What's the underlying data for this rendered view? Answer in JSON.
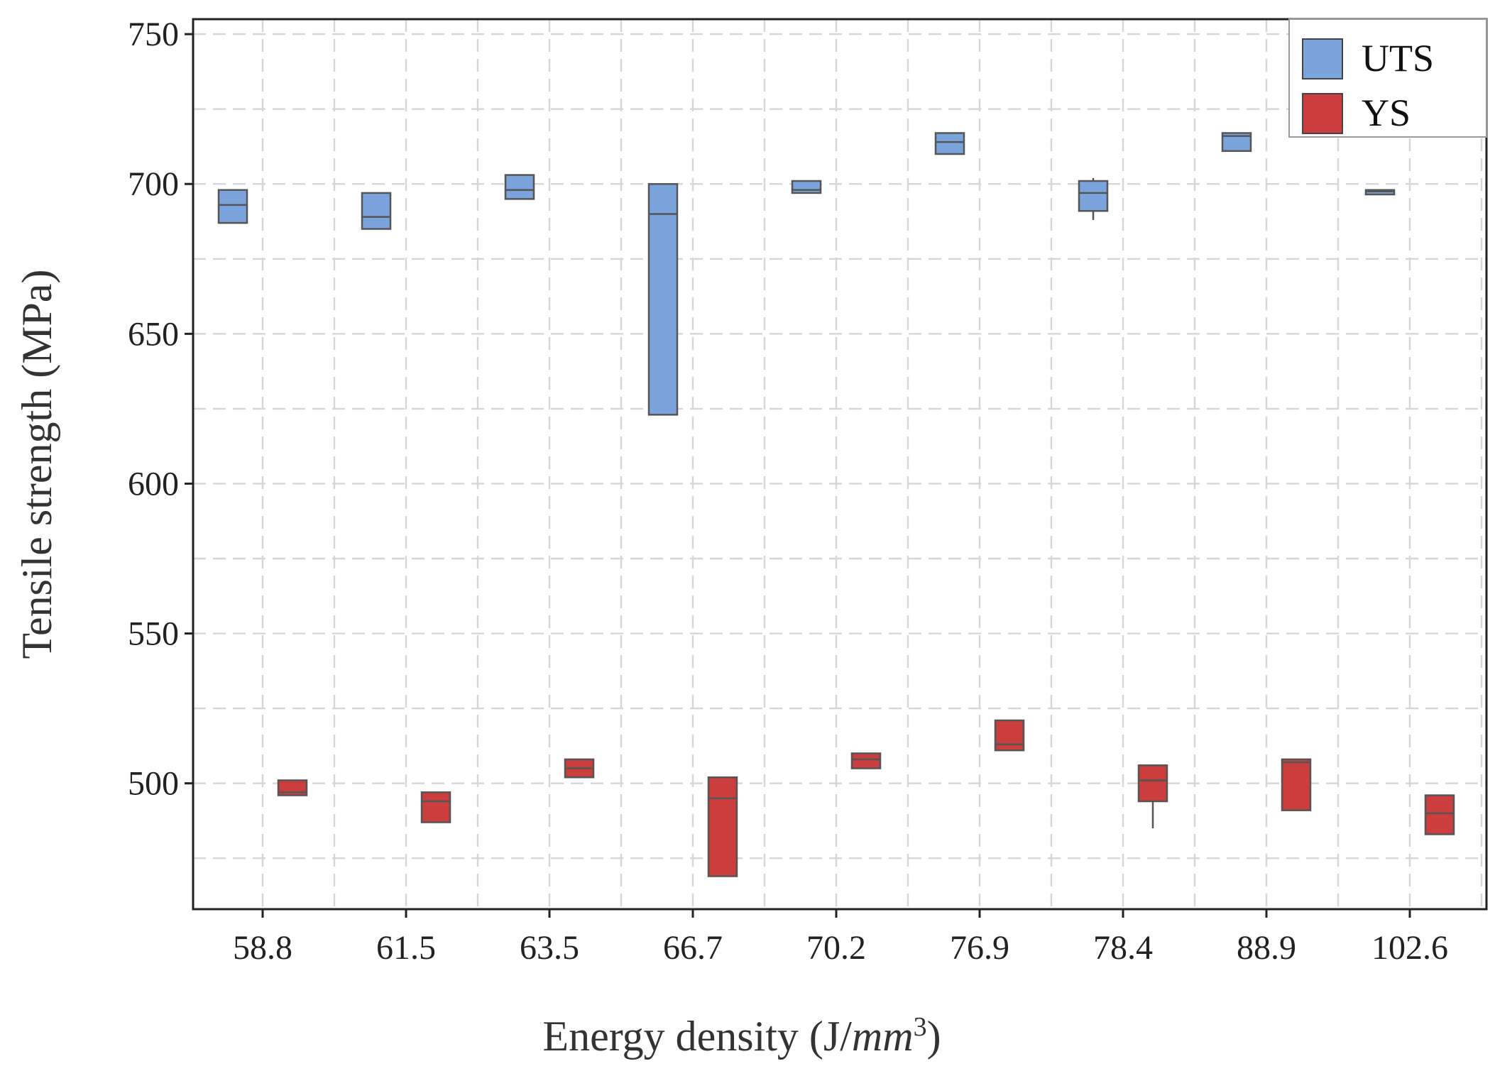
{
  "chart_data": {
    "type": "box",
    "title": "",
    "xlabel_prefix": "Energy density (J/",
    "xlabel_unit_base": "mm",
    "xlabel_unit_exp": "3",
    "xlabel_suffix": ")",
    "ylabel": "Tensile strength (MPa)",
    "categories": [
      "58.8",
      "61.5",
      "63.5",
      "66.7",
      "70.2",
      "76.9",
      "78.4",
      "88.9",
      "102.6"
    ],
    "ylim": [
      458,
      755
    ],
    "yticks": [
      500,
      550,
      600,
      650,
      700,
      750
    ],
    "grid": true,
    "legend_position": "top-right",
    "series": [
      {
        "name": "UTS",
        "color": "#7ba3dc",
        "boxes": [
          {
            "q1": 687,
            "median": 693,
            "q3": 698,
            "whisker_low": 687,
            "whisker_high": 698
          },
          {
            "q1": 685,
            "median": 689,
            "q3": 697,
            "whisker_low": 685,
            "whisker_high": 697
          },
          {
            "q1": 695,
            "median": 698,
            "q3": 703,
            "whisker_low": 695,
            "whisker_high": 703
          },
          {
            "q1": 623,
            "median": 690,
            "q3": 700,
            "whisker_low": 623,
            "whisker_high": 700
          },
          {
            "q1": 697,
            "median": 698,
            "q3": 701,
            "whisker_low": 697,
            "whisker_high": 701
          },
          {
            "q1": 710,
            "median": 714,
            "q3": 717,
            "whisker_low": 710,
            "whisker_high": 717
          },
          {
            "q1": 691,
            "median": 697,
            "q3": 701,
            "whisker_low": 688,
            "whisker_high": 702
          },
          {
            "q1": 711,
            "median": 716,
            "q3": 717,
            "whisker_low": 711,
            "whisker_high": 717
          },
          {
            "q1": 696.5,
            "median": 697.5,
            "q3": 698,
            "whisker_low": 696.5,
            "whisker_high": 698
          }
        ]
      },
      {
        "name": "YS",
        "color": "#cc3d3d",
        "boxes": [
          {
            "q1": 496,
            "median": 497,
            "q3": 501,
            "whisker_low": 496,
            "whisker_high": 501
          },
          {
            "q1": 487,
            "median": 494,
            "q3": 497,
            "whisker_low": 487,
            "whisker_high": 497
          },
          {
            "q1": 502,
            "median": 505,
            "q3": 508,
            "whisker_low": 502,
            "whisker_high": 508
          },
          {
            "q1": 469,
            "median": 495,
            "q3": 502,
            "whisker_low": 469,
            "whisker_high": 502
          },
          {
            "q1": 505,
            "median": 508,
            "q3": 510,
            "whisker_low": 505,
            "whisker_high": 510
          },
          {
            "q1": 511,
            "median": 513,
            "q3": 521,
            "whisker_low": 511,
            "whisker_high": 521
          },
          {
            "q1": 494,
            "median": 501,
            "q3": 506,
            "whisker_low": 485,
            "whisker_high": 506
          },
          {
            "q1": 491,
            "median": 507,
            "q3": 508,
            "whisker_low": 491,
            "whisker_high": 508
          },
          {
            "q1": 483,
            "median": 490,
            "q3": 496,
            "whisker_low": 483,
            "whisker_high": 496
          }
        ]
      }
    ]
  }
}
